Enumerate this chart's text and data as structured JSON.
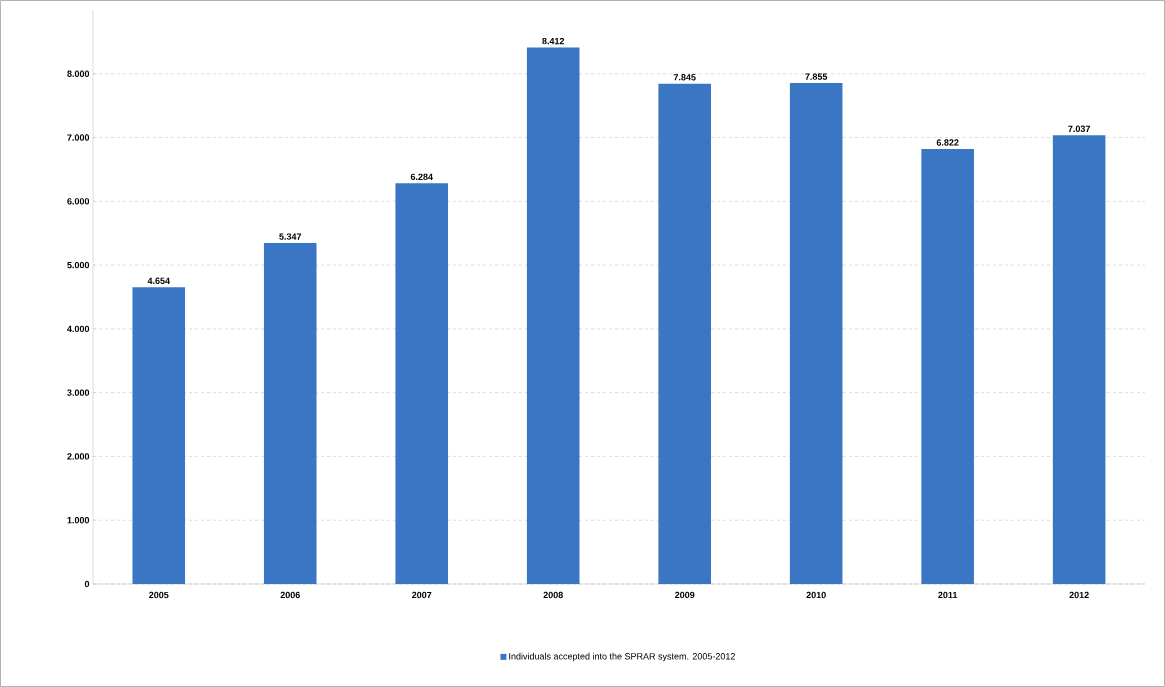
{
  "chart_data": {
    "type": "bar",
    "categories": [
      "2005",
      "2006",
      "2007",
      "2008",
      "2009",
      "2010",
      "2011",
      "2012"
    ],
    "series": [
      {
        "name": "Individuals accepted into the SPRAR system. 2005-2012",
        "color": "#3a76c4",
        "values": [
          4654,
          5347,
          6284,
          8412,
          7845,
          7855,
          6822,
          7037
        ],
        "value_labels": [
          "4.654",
          "5.347",
          "6.284",
          "8.412",
          "7.845",
          "7.855",
          "6.822",
          "7.037"
        ]
      }
    ],
    "ylim": [
      0,
      9000
    ],
    "yticks": [
      0,
      {
        "value": 1000,
        "label": "1.000"
      },
      {
        "value": 2000,
        "label": "2.000"
      },
      {
        "value": 3000,
        "label": "3.000"
      },
      {
        "value": 4000,
        "label": "4.000"
      },
      {
        "value": 5000,
        "label": "5.000"
      },
      {
        "value": 6000,
        "label": "6.000"
      },
      {
        "value": 7000,
        "label": "7.000"
      },
      {
        "value": 8000,
        "label": "8.000"
      }
    ],
    "grid": "y",
    "legend": "bottom"
  }
}
